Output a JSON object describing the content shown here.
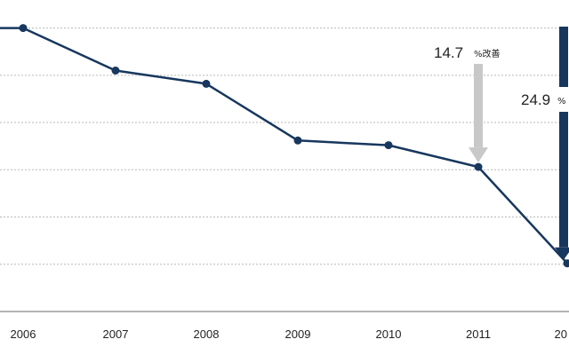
{
  "chart_data": {
    "type": "line",
    "title": "",
    "xlabel": "",
    "ylabel": "",
    "x": [
      "2006",
      "2007",
      "2008",
      "2009",
      "2010",
      "2011",
      "20"
    ],
    "series": [
      {
        "values": [
          100,
          95.5,
          94.1,
          88.1,
          87.6,
          85.3,
          75.1
        ]
      }
    ],
    "ylim": [
      70,
      104
    ],
    "grid": true,
    "colors": {
      "line": "#17375e",
      "arrow_gray": "#c8c8c8",
      "arrow_navy": "#17375e",
      "grid": "#b8b8b8"
    },
    "annotations": [
      {
        "value": "14.7",
        "unit": "%改善",
        "arrow": "gray",
        "from_category": "2011"
      },
      {
        "value": "24.9",
        "unit": "%",
        "arrow": "navy",
        "from_category": "20"
      }
    ]
  }
}
